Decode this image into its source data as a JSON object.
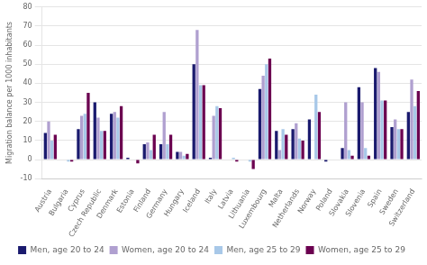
{
  "chart_data": {
    "type": "bar",
    "ylabel": "Migration balance per 1000 inhabitants",
    "categories": [
      "Austria",
      "Bulgaria",
      "Cyprus",
      "Czech Republic",
      "Denmark",
      "Estonia",
      "Finland",
      "Germany",
      "Hungary",
      "Iceland",
      "Italy",
      "Latvia",
      "Lithuania",
      "Luxembourg",
      "Malta",
      "Netherlands",
      "Norway",
      "Poland",
      "Slovakia",
      "Slovenia",
      "Spain",
      "Sweden",
      "Switzerland"
    ],
    "series": [
      {
        "name": "Men, age 20 to 24",
        "color": "#1a1a6e",
        "values": [
          14,
          0,
          16,
          30,
          24,
          1,
          8,
          8,
          4,
          50,
          1,
          0,
          0,
          37,
          15,
          16,
          21,
          -1,
          6,
          38,
          48,
          17,
          25
        ]
      },
      {
        "name": "Women, age 20 to 24",
        "color": "#b0a0d0",
        "values": [
          20,
          0,
          23,
          22,
          25,
          0,
          9,
          25,
          4,
          68,
          23,
          0,
          0,
          44,
          5,
          19,
          0,
          0,
          30,
          30,
          46,
          21,
          42
        ]
      },
      {
        "name": "Men, age 25 to 29",
        "color": "#a8c8e8",
        "values": [
          10,
          -1,
          24,
          15,
          22,
          0,
          5,
          8,
          2,
          39,
          28,
          1,
          -1,
          50,
          16,
          11,
          34,
          0,
          5,
          6,
          31,
          16,
          28
        ]
      },
      {
        "name": "Women, age 25 to 29",
        "color": "#6b0050",
        "values": [
          13,
          -1,
          35,
          15,
          28,
          -2,
          13,
          13,
          3,
          39,
          27,
          -1,
          -5,
          53,
          13,
          10,
          25,
          0,
          2,
          2,
          31,
          16,
          36
        ]
      }
    ],
    "ylim": [
      -10,
      80
    ],
    "yticks": [
      -10,
      0,
      10,
      20,
      30,
      40,
      50,
      60,
      70,
      80
    ],
    "grid": true,
    "legend": "bottom"
  }
}
